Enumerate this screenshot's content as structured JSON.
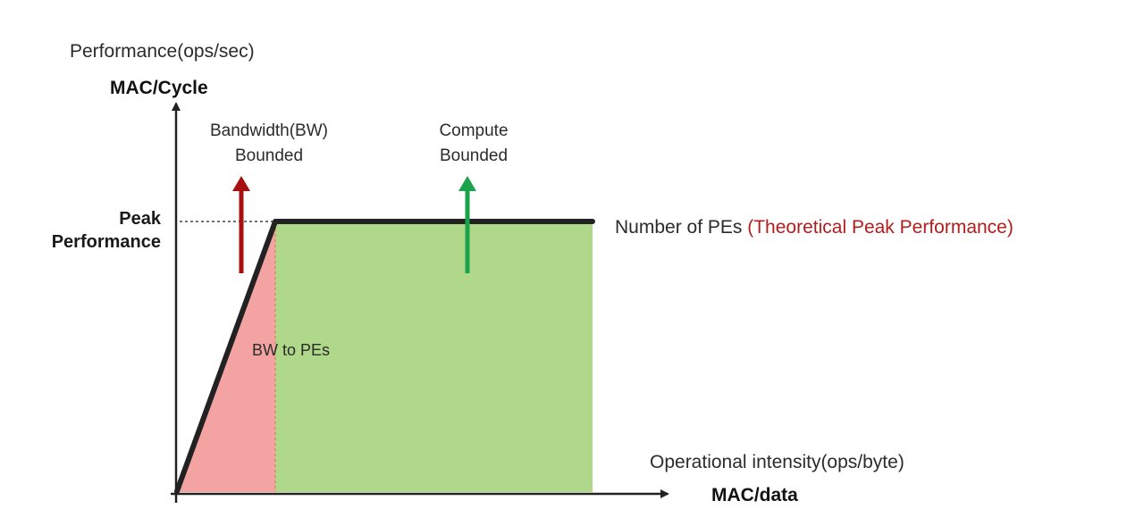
{
  "y_axis": {
    "title": "Performance(ops/sec)",
    "unit": "MAC/Cycle"
  },
  "x_axis": {
    "title": "Operational intensity(ops/byte)",
    "unit": "MAC/data"
  },
  "peak_label": "Peak\nPerformance",
  "regions": {
    "bandwidth": {
      "label": "Bandwidth(BW)\nBounded",
      "fill_color": "#f4a3a3",
      "arrow_color": "#a80f0f",
      "slope_label": "BW to PEs"
    },
    "compute": {
      "label": "Compute\nBounded",
      "fill_color": "#b0d88a",
      "arrow_color": "#1aa34a"
    }
  },
  "plateau_label": {
    "prefix": "Number of PEs ",
    "highlight": "(Theoretical Peak Performance)",
    "highlight_color": "#b21d1d"
  },
  "roofline_color": "#222222"
}
